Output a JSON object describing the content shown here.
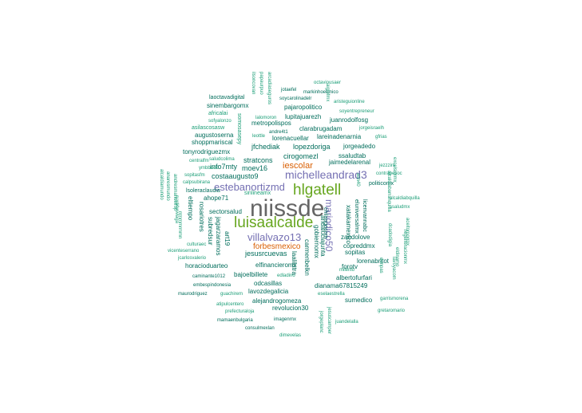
{
  "palette": {
    "c1": "#1b9e77",
    "c2": "#006d5b",
    "c3": "#66a61e",
    "c4": "#7570b3",
    "c5": "#d95f02",
    "c6": "#666666"
  },
  "words": [
    {
      "t": "niissde",
      "c": "c6"
    },
    {
      "t": "luisaalcalde",
      "c": "c3"
    },
    {
      "t": "hlgatell",
      "c": "c3"
    },
    {
      "t": "michelleandrad3",
      "c": "c4"
    },
    {
      "t": "villalvazo13",
      "c": "c4"
    },
    {
      "t": "mariodico50",
      "c": "c4"
    },
    {
      "t": "estebanortizmd",
      "c": "c4"
    },
    {
      "t": "iescolar",
      "c": "c5"
    },
    {
      "t": "forbesmexico",
      "c": "c5"
    },
    {
      "t": "jesusrcuevas",
      "c": "c2"
    },
    {
      "t": "costaaugusto9",
      "c": "c2"
    },
    {
      "t": "stratcons",
      "c": "c2"
    },
    {
      "t": "moev16",
      "c": "c2"
    },
    {
      "t": "info7mty",
      "c": "c2"
    },
    {
      "t": "cirogomezl",
      "c": "c2"
    },
    {
      "t": "jaimedelarenal",
      "c": "c2"
    },
    {
      "t": "ssaludtab",
      "c": "c2"
    },
    {
      "t": "jfchediak",
      "c": "c2"
    },
    {
      "t": "lopezdoriga",
      "c": "c2"
    },
    {
      "t": "jorgeadedo",
      "c": "c2"
    },
    {
      "t": "tonyrodriguezmx",
      "c": "c2"
    },
    {
      "t": "shoppmariscal",
      "c": "c2"
    },
    {
      "t": "augustoserna",
      "c": "c2"
    },
    {
      "t": "asilascosasw",
      "c": "c1"
    },
    {
      "t": "lorenacuellar",
      "c": "c2"
    },
    {
      "t": "lareinadenarnia",
      "c": "c2"
    },
    {
      "t": "clarabrugadam",
      "c": "c2"
    },
    {
      "t": "metropolispos",
      "c": "c2"
    },
    {
      "t": "lupitajuarezh",
      "c": "c2"
    },
    {
      "t": "juanrodolfosg",
      "c": "c2"
    },
    {
      "t": "sinembargomx",
      "c": "c2"
    },
    {
      "t": "pajaropolitico",
      "c": "c2"
    },
    {
      "t": "laoctavadigital",
      "c": "c2"
    },
    {
      "t": "africalai",
      "c": "c1"
    },
    {
      "t": "sofyalonzo",
      "c": "c1"
    },
    {
      "t": "somosasepy",
      "c": "c1"
    },
    {
      "t": "jotaefel",
      "c": "c2"
    },
    {
      "t": "markinhoelunico",
      "c": "c2"
    },
    {
      "t": "octaviousaer",
      "c": "c1"
    },
    {
      "t": "soycarolinadelr",
      "c": "c2"
    },
    {
      "t": "aristeguionline",
      "c": "c1"
    },
    {
      "t": "soyentrepreneur",
      "c": "c1"
    },
    {
      "t": "jorgeisraelh",
      "c": "c1"
    },
    {
      "t": "gfrias",
      "c": "c1"
    },
    {
      "t": "lalomoron",
      "c": "c1"
    },
    {
      "t": "leottle",
      "c": "c1"
    },
    {
      "t": "andre4t1",
      "c": "c2"
    },
    {
      "t": "centralfm",
      "c": "c1"
    },
    {
      "t": "ymbback",
      "c": "c1"
    },
    {
      "t": "saludcolima",
      "c": "c1"
    },
    {
      "t": "jezzzini",
      "c": "c1"
    },
    {
      "t": "contrapesoc",
      "c": "c1"
    },
    {
      "t": "sopitasfm",
      "c": "c1"
    },
    {
      "t": "calpsubirana",
      "c": "c1"
    },
    {
      "t": "lsoleraclaudia",
      "c": "c2"
    },
    {
      "t": "ahope71",
      "c": "c2"
    },
    {
      "t": "sinlineamx",
      "c": "c1"
    },
    {
      "t": "politicomx",
      "c": "c2"
    },
    {
      "t": "alcaldiabquilla",
      "c": "c1"
    },
    {
      "t": "ssaludmx",
      "c": "c1"
    },
    {
      "t": "eltiempo",
      "c": "c2"
    },
    {
      "t": "sectorsalud",
      "c": "c2"
    },
    {
      "t": "rosariotres",
      "c": "c2"
    },
    {
      "t": "subredsur",
      "c": "c2"
    },
    {
      "t": "jagarzaramos",
      "c": "c2"
    },
    {
      "t": "art19",
      "c": "c2"
    },
    {
      "t": "culturaec",
      "c": "c1"
    },
    {
      "t": "vicenteserrano",
      "c": "c1"
    },
    {
      "t": "jcarlosvalerio",
      "c": "c1"
    },
    {
      "t": "horacioduarteo",
      "c": "c2"
    },
    {
      "t": "elfinancieromx",
      "c": "c2"
    },
    {
      "t": "caminante1012",
      "c": "c2"
    },
    {
      "t": "bajoelbillete",
      "c": "c2"
    },
    {
      "t": "edladino",
      "c": "c1"
    },
    {
      "t": "odcasillas",
      "c": "c2"
    },
    {
      "t": "embespindonesia",
      "c": "c2"
    },
    {
      "t": "lavozdegalicia",
      "c": "c2"
    },
    {
      "t": "maurodriguez",
      "c": "c2"
    },
    {
      "t": "guachirem",
      "c": "c1"
    },
    {
      "t": "alejandrogomeza",
      "c": "c2"
    },
    {
      "t": "atipulcentero",
      "c": "c1"
    },
    {
      "t": "revolucion30",
      "c": "c2"
    },
    {
      "t": "prefecturaloja",
      "c": "c1"
    },
    {
      "t": "mamaenbulgaria",
      "c": "c2"
    },
    {
      "t": "imagenrnx",
      "c": "c2"
    },
    {
      "t": "consulmexlan",
      "c": "c2"
    },
    {
      "t": "dimevelas",
      "c": "c1"
    },
    {
      "t": "sumedico",
      "c": "c2"
    },
    {
      "t": "eselaestrella",
      "c": "c1"
    },
    {
      "t": "garrismorena",
      "c": "c1"
    },
    {
      "t": "gretaromario",
      "c": "c1"
    },
    {
      "t": "juandelalla",
      "c": "c1"
    },
    {
      "t": "dianama67815249",
      "c": "c2"
    },
    {
      "t": "albertofurfari",
      "c": "c2"
    },
    {
      "t": "milenio",
      "c": "c1"
    },
    {
      "t": "lorenabritot",
      "c": "c2"
    },
    {
      "t": "forotv",
      "c": "c2"
    },
    {
      "t": "sopitas",
      "c": "c2"
    },
    {
      "t": "copreddmx",
      "c": "c2"
    },
    {
      "t": "zandolove",
      "c": "c2"
    },
    {
      "t": "andaluciajunta",
      "c": "c2"
    },
    {
      "t": "gobiernomx",
      "c": "c2"
    },
    {
      "t": "laalilatra",
      "c": "c2"
    },
    {
      "t": "carmenbelkn",
      "c": "c2"
    },
    {
      "t": "xatakamexico",
      "c": "c2"
    },
    {
      "t": "licenvannabc",
      "c": "c2"
    },
    {
      "t": "eluniversalmx",
      "c": "c2"
    },
    {
      "t": "chilangocom",
      "c": "c2"
    },
    {
      "t": "dunpas",
      "c": "c1"
    },
    {
      "t": "lavoyacom",
      "c": "c1"
    },
    {
      "t": "dcadodigia",
      "c": "c1"
    },
    {
      "t": "eldinamo",
      "c": "c1"
    },
    {
      "t": "regeneracionmx",
      "c": "c1"
    },
    {
      "t": "aceitorporrox",
      "c": "c1"
    },
    {
      "t": "excelsiormx",
      "c": "c1"
    },
    {
      "t": "adn40",
      "c": "c1"
    },
    {
      "t": "alcaldiabarranquilla",
      "c": "c1"
    },
    {
      "t": "alcaldiamundo",
      "c": "c1"
    },
    {
      "t": "anaresmundo",
      "c": "c1"
    },
    {
      "t": "andresmanuelfop",
      "c": "c1"
    },
    {
      "t": "ruxd4wwlaga",
      "c": "c1"
    },
    {
      "t": "arcadiaseguros",
      "c": "c1"
    },
    {
      "t": "papaurpuo",
      "c": "c1"
    },
    {
      "t": "ilsoncovan",
      "c": "c1"
    },
    {
      "t": "jorgeplanc",
      "c": "c1"
    },
    {
      "t": "jesuscamper",
      "c": "c1"
    },
    {
      "t": "aiglofmx",
      "c": "c1"
    },
    {
      "t": "rrmmmrmmn",
      "c": "c1"
    }
  ]
}
